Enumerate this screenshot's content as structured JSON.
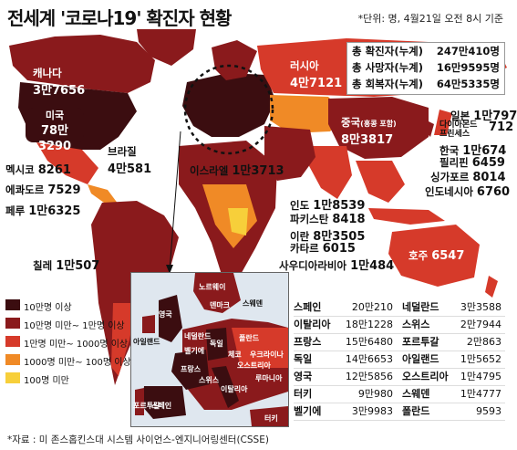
{
  "title": "전세계 '코로나19' 확진자 현황",
  "unit_note": "*단위: 명, 4월21일 오전 8시 기준",
  "totals": [
    {
      "label": "총 확진자(누계)",
      "value": "247만410명"
    },
    {
      "label": "총 사망자(누계)",
      "value": "16만9595명"
    },
    {
      "label": "총 회복자(누계)",
      "value": "64만5335명"
    }
  ],
  "map_labels": {
    "canada": {
      "name": "캐나다",
      "value": "3만7656"
    },
    "usa": {
      "name": "미국",
      "value": "78만3290"
    },
    "russia": {
      "name": "러시아",
      "value": "4만7121"
    },
    "brazil": {
      "name": "브라질",
      "value": "4만581"
    },
    "mexico": {
      "name": "멕시코",
      "value": "8261"
    },
    "ecuador": {
      "name": "에콰도르",
      "value": "7529"
    },
    "peru": {
      "name": "페루",
      "value": "1만6325"
    },
    "chile": {
      "name": "칠레",
      "value": "1만507"
    },
    "israel": {
      "name": "이스라엘",
      "value": "1만3713"
    },
    "china": {
      "name": "중국",
      "note": "(홍콩 포함)",
      "value": "8만3817"
    },
    "japan": {
      "name": "일본",
      "value": "1만797"
    },
    "diamond": {
      "name": "다이아몬드 프린세스",
      "value": "712"
    },
    "korea": {
      "name": "한국",
      "value": "1만674"
    },
    "philippines": {
      "name": "필리핀",
      "value": "6459"
    },
    "singapore": {
      "name": "싱가포르",
      "value": "8014"
    },
    "indonesia": {
      "name": "인도네시아",
      "value": "6760"
    },
    "india": {
      "name": "인도",
      "value": "1만8539"
    },
    "pakistan": {
      "name": "파키스탄",
      "value": "8418"
    },
    "iran": {
      "name": "이란",
      "value": "8만3505"
    },
    "qatar": {
      "name": "카타르",
      "value": "6015"
    },
    "saudi": {
      "name": "사우디아라비아",
      "value": "1만484"
    },
    "australia": {
      "name": "호주",
      "value": "6547"
    }
  },
  "inset_labels": [
    "노르웨이",
    "덴마크",
    "스웨덴",
    "영국",
    "아일랜드",
    "네덜란드",
    "독일",
    "폴란드",
    "벨기에",
    "프랑스",
    "체코",
    "우크라이나",
    "오스트리아",
    "스위스",
    "포르투갈",
    "스페인",
    "이탈리아",
    "루마니아",
    "터키"
  ],
  "legend": [
    {
      "label": "10만명 이상",
      "color": "#3b0d10"
    },
    {
      "label": "10만명 미만~ 1만명 이상",
      "color": "#8a1a1c"
    },
    {
      "label": "1만명 미만~ 1000명 이상",
      "color": "#d63a2a"
    },
    {
      "label": "1000명 미만~ 100명 이상",
      "color": "#f08a26"
    },
    {
      "label": "100명 미만",
      "color": "#f7cf3a"
    }
  ],
  "table": [
    [
      "스페인",
      "20만210",
      "네덜란드",
      "3만3588"
    ],
    [
      "이탈리아",
      "18만1228",
      "스위스",
      "2만7944"
    ],
    [
      "프랑스",
      "15만6480",
      "포르투갈",
      "2만863"
    ],
    [
      "독일",
      "14만6653",
      "아일랜드",
      "1만5652"
    ],
    [
      "영국",
      "12만5856",
      "오스트리아",
      "1만4795"
    ],
    [
      "터키",
      "9만980",
      "스웨덴",
      "1만4777"
    ],
    [
      "벨기에",
      "3만9983",
      "폴란드",
      "9593"
    ]
  ],
  "source": "*자료 : 미 존스홉킨스대 시스템 사이언스-엔지니어링센터(CSSE)"
}
